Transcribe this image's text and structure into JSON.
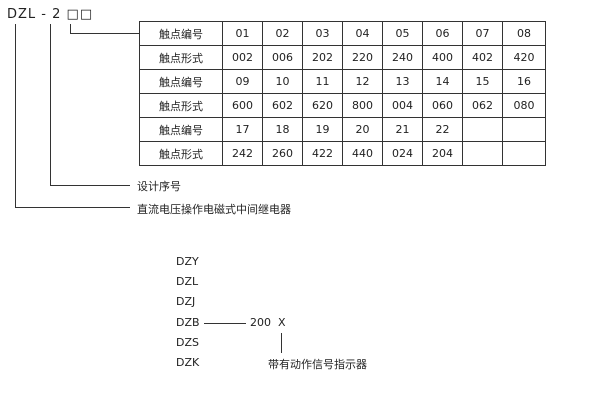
{
  "model_code": {
    "prefix": "DZL - 2",
    "boxes": "□□"
  },
  "table": {
    "rows": [
      {
        "label": "触点编号",
        "cells": [
          "01",
          "02",
          "03",
          "04",
          "05",
          "06",
          "07",
          "08"
        ]
      },
      {
        "label": "触点形式",
        "cells": [
          "002",
          "006",
          "202",
          "220",
          "240",
          "400",
          "402",
          "420"
        ]
      },
      {
        "label": "触点编号",
        "cells": [
          "09",
          "10",
          "11",
          "12",
          "13",
          "14",
          "15",
          "16"
        ]
      },
      {
        "label": "触点形式",
        "cells": [
          "600",
          "602",
          "620",
          "800",
          "004",
          "060",
          "062",
          "080"
        ]
      },
      {
        "label": "触点编号",
        "cells": [
          "17",
          "18",
          "19",
          "20",
          "21",
          "22",
          "",
          ""
        ]
      },
      {
        "label": "触点形式",
        "cells": [
          "242",
          "260",
          "422",
          "440",
          "024",
          "204",
          "",
          ""
        ]
      }
    ]
  },
  "annotations": {
    "design_number": "设计序号",
    "relay_type": "直流电压操作电磁式中间继电器"
  },
  "series": {
    "models": [
      "DZY",
      "DZL",
      "DZJ",
      "DZB",
      "DZS",
      "DZK"
    ],
    "suffix": "200",
    "suffix_x": "X",
    "indicator_note": "带有动作信号指示器"
  }
}
